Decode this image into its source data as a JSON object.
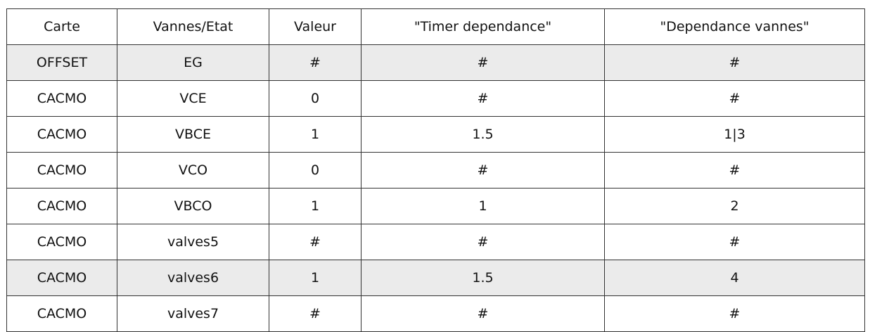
{
  "table": {
    "headers": [
      "Carte",
      "Vannes/Etat",
      "Valeur",
      "\"Timer dependance\"",
      "\"Dependance vannes\""
    ],
    "rows": [
      {
        "cells": [
          "OFFSET",
          "EG",
          "#",
          "#",
          "#"
        ],
        "highlighted": true
      },
      {
        "cells": [
          "CACMO",
          "VCE",
          "0",
          "#",
          "#"
        ],
        "highlighted": false
      },
      {
        "cells": [
          "CACMO",
          "VBCE",
          "1",
          "1.5",
          "1|3"
        ],
        "highlighted": false
      },
      {
        "cells": [
          "CACMO",
          "VCO",
          "0",
          "#",
          "#"
        ],
        "highlighted": false
      },
      {
        "cells": [
          "CACMO",
          "VBCO",
          "1",
          "1",
          "2"
        ],
        "highlighted": false
      },
      {
        "cells": [
          "CACMO",
          "valves5",
          "#",
          "#",
          "#"
        ],
        "highlighted": false
      },
      {
        "cells": [
          "CACMO",
          "valves6",
          "1",
          "1.5",
          "4"
        ],
        "highlighted": true
      },
      {
        "cells": [
          "CACMO",
          "valves7",
          "#",
          "#",
          "#"
        ],
        "highlighted": false
      }
    ]
  },
  "colors": {
    "border": "#333333",
    "highlight_row": "#ebebeb",
    "text": "#111111"
  }
}
